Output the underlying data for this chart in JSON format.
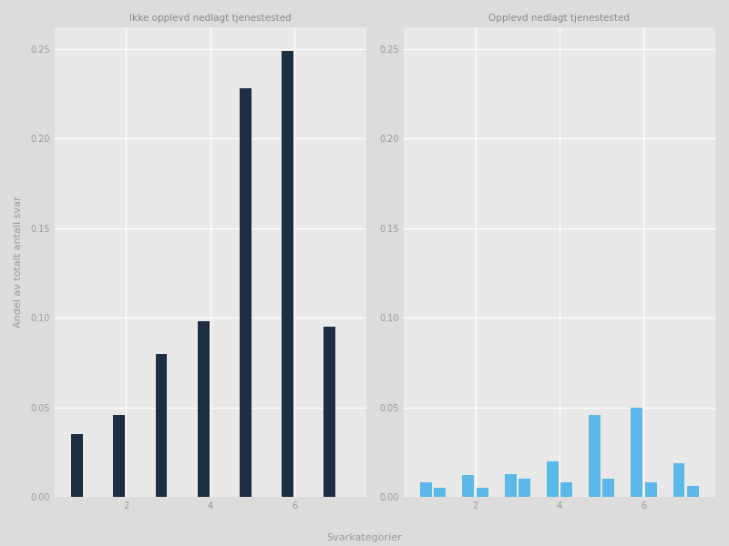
{
  "left_title": "Ikke opplevd nedlagt tjenestested",
  "right_title": "Opplevd nedlagt tjenestested",
  "xlabel": "Svarkategorier",
  "ylabel": "Andel av totalt antall svar",
  "categories": [
    1,
    2,
    3,
    4,
    5,
    6,
    7
  ],
  "left_bar1": [
    0.035,
    0.046,
    0.08,
    0.098,
    0.228,
    0.249,
    0.095
  ],
  "left_bar2": [
    0.0,
    0.0,
    0.0,
    0.0,
    0.0,
    0.0,
    0.0
  ],
  "right_bar1": [
    0.008,
    0.012,
    0.013,
    0.02,
    0.046,
    0.05,
    0.019
  ],
  "right_bar2": [
    0.005,
    0.005,
    0.01,
    0.008,
    0.01,
    0.008,
    0.006
  ],
  "left_color": "#1C2E40",
  "right_color": "#5BB8E8",
  "ylim": [
    0,
    0.262
  ],
  "yticks": [
    0.0,
    0.05,
    0.1,
    0.15,
    0.2,
    0.25
  ],
  "xticks": [
    2,
    4,
    6
  ],
  "background_color": "#DCDCDC",
  "plot_bg_color": "#E8E8E8",
  "title_fontsize": 7.5,
  "axis_fontsize": 8,
  "tick_fontsize": 7,
  "bar_width": 0.28,
  "bar_gap": 0.05
}
